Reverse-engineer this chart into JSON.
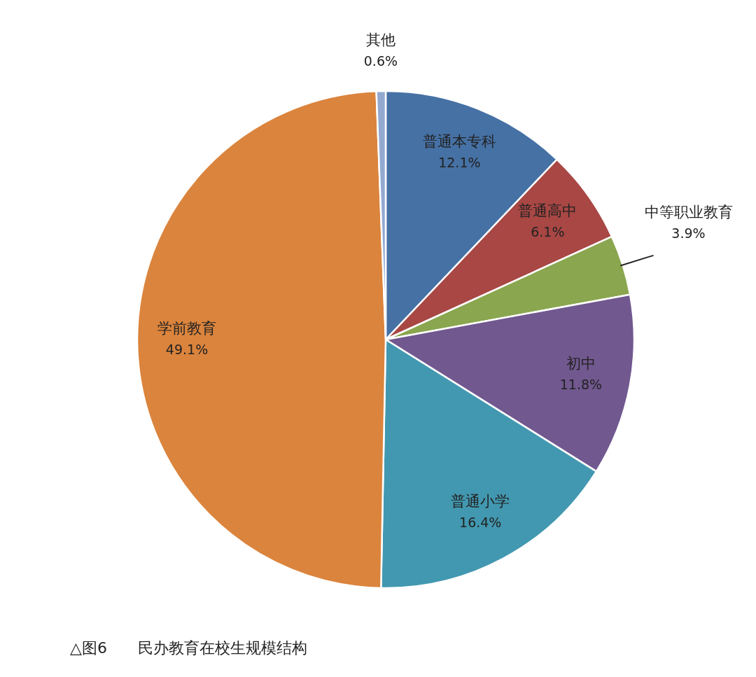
{
  "chart_data": {
    "type": "pie",
    "categories": [
      "普通本专科",
      "普通高中",
      "中等职业教育",
      "初中",
      "普通小学",
      "学前教育",
      "其他"
    ],
    "values": [
      12.1,
      6.1,
      3.9,
      11.8,
      16.4,
      49.1,
      0.6
    ],
    "value_labels": [
      "12.1%",
      "6.1%",
      "3.9%",
      "11.8%",
      "16.4%",
      "49.1%",
      "0.6%"
    ],
    "colors": [
      "#4671a5",
      "#a84744",
      "#8aa64f",
      "#71588f",
      "#4298b0",
      "#db843d",
      "#93a9d0"
    ],
    "annotations": [
      "△图6　　民办教育在校生规模结构"
    ]
  }
}
